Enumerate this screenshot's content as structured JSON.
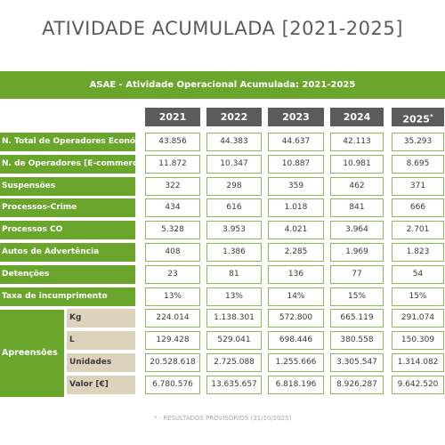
{
  "title": "ATIVIDADE ACUMULADA [2021-2025]",
  "banner": "ASAE - Atividade Operacional Acumulada: 2021-2025",
  "years": [
    "2021",
    "2022",
    "2023",
    "2024",
    "2025"
  ],
  "year_marker": "*",
  "rows": [
    {
      "label": "N. Total de Operadores Económicos",
      "values": [
        "43.856",
        "44.383",
        "44.637",
        "42.113",
        "35.293"
      ]
    },
    {
      "label": "N. de Operadores [E-commerce]",
      "values": [
        "11.872",
        "10.347",
        "10.887",
        "10.981",
        "8.695"
      ]
    },
    {
      "label": "Suspensões",
      "values": [
        "322",
        "298",
        "359",
        "462",
        "371"
      ]
    },
    {
      "label": "Processos-Crime",
      "values": [
        "434",
        "616",
        "1.018",
        "841",
        "666"
      ]
    },
    {
      "label": "Processos CO",
      "values": [
        "5.328",
        "3.953",
        "4.021",
        "3.964",
        "2.701"
      ]
    },
    {
      "label": "Autos de Advertência",
      "values": [
        "408",
        "1.386",
        "2.285",
        "1.969",
        "1.823"
      ]
    },
    {
      "label": "Detenções",
      "values": [
        "23",
        "81",
        "136",
        "77",
        "54"
      ]
    },
    {
      "label": "Taxa de incumprimento",
      "values": [
        "13%",
        "13%",
        "14%",
        "15%",
        "15%"
      ]
    }
  ],
  "seizures": {
    "label": "Apreensões",
    "rows": [
      {
        "label": "Kg",
        "values": [
          "224.014",
          "1.138.301",
          "572.800",
          "665.119",
          "291.074"
        ]
      },
      {
        "label": "L",
        "values": [
          "129.428",
          "529.041",
          "698.446",
          "380.558",
          "150.309"
        ]
      },
      {
        "label": "Unidades",
        "values": [
          "20.528.618",
          "2.725.088",
          "1.255.666",
          "3.305.547",
          "1.314.082"
        ]
      },
      {
        "label": "Valor [€]",
        "values": [
          "6.780.576",
          "13.635.657",
          "6.818.196",
          "8.926.287",
          "9.642.520"
        ]
      }
    ]
  },
  "footnote": "* - RESULTADOS PROVISÓRIOS (31/10/2025)",
  "colors": {
    "accent": "#6aa52c",
    "header_gray": "#5b5b5b",
    "sub_beige": "#ddd3bd"
  }
}
